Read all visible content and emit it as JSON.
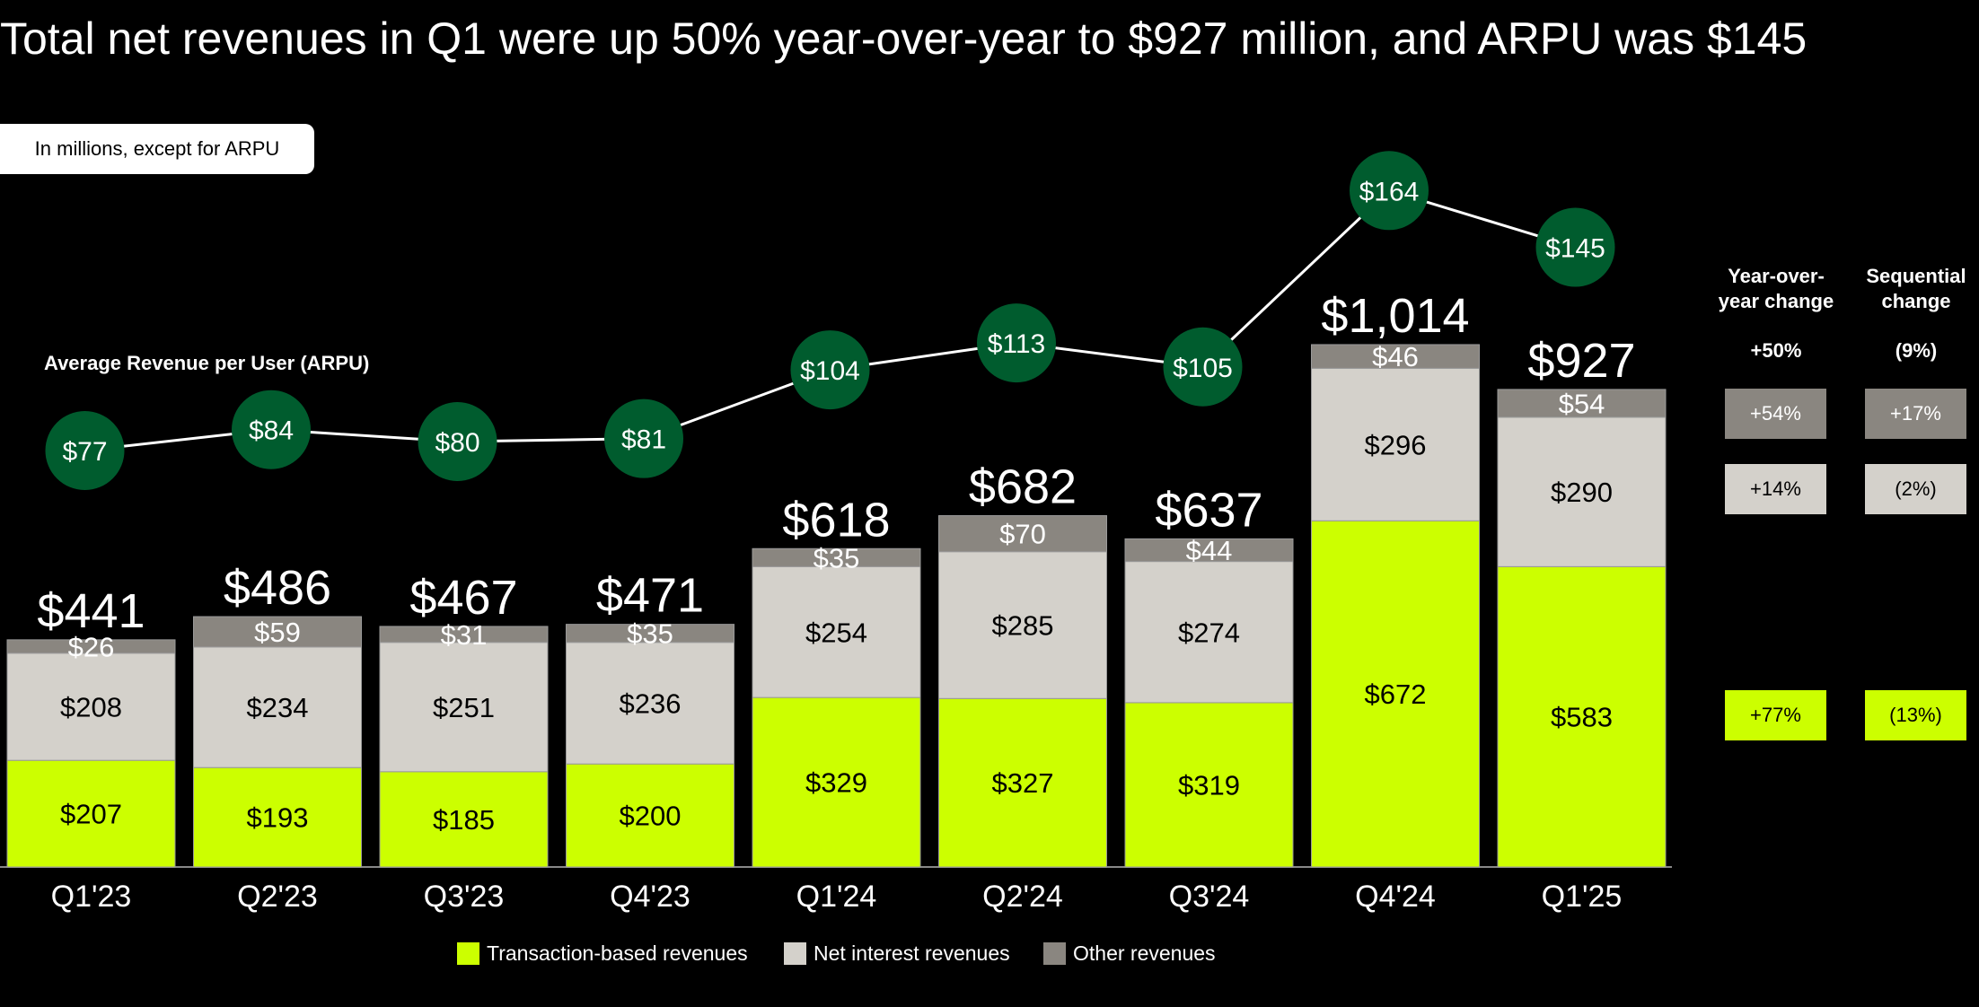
{
  "title": "Total net revenues in Q1 were up 50% year-over-year to $927 million, and ARPU was $145",
  "subtitle": "In millions, except for ARPU",
  "arpu_label": "Average Revenue per User (ARPU)",
  "colors": {
    "transaction": "#ccff00",
    "net_interest": "#d4d1cb",
    "other": "#8a8680",
    "arpu_circle": "#005c2e"
  },
  "chart_data": {
    "type": "bar",
    "stacked": true,
    "categories": [
      "Q1'23",
      "Q2'23",
      "Q3'23",
      "Q4'23",
      "Q1'24",
      "Q2'24",
      "Q3'24",
      "Q4'24",
      "Q1'25"
    ],
    "series": [
      {
        "name": "Transaction-based revenues",
        "values": [
          207,
          193,
          185,
          200,
          329,
          327,
          319,
          672,
          583
        ],
        "labels": [
          "$207",
          "$193",
          "$185",
          "$200",
          "$329",
          "$327",
          "$319",
          "$672",
          "$583"
        ]
      },
      {
        "name": "Net interest revenues",
        "values": [
          208,
          234,
          251,
          236,
          254,
          285,
          274,
          296,
          290
        ],
        "labels": [
          "$208",
          "$234",
          "$251",
          "$236",
          "$254",
          "$285",
          "$274",
          "$296",
          "$290"
        ]
      },
      {
        "name": "Other revenues",
        "values": [
          26,
          59,
          31,
          35,
          35,
          70,
          44,
          46,
          54
        ],
        "labels": [
          "$26",
          "$59",
          "$31",
          "$35",
          "$35",
          "$70",
          "$44",
          "$46",
          "$54"
        ]
      }
    ],
    "totals": [
      441,
      486,
      467,
      471,
      618,
      682,
      637,
      1014,
      927
    ],
    "total_labels": [
      "$441",
      "$486",
      "$467",
      "$471",
      "$618",
      "$682",
      "$637",
      "$1,014",
      "$927"
    ],
    "arpu": {
      "name": "Average Revenue per User (ARPU)",
      "values": [
        77,
        84,
        80,
        81,
        104,
        113,
        105,
        164,
        145
      ],
      "labels": [
        "$77",
        "$84",
        "$80",
        "$81",
        "$104",
        "$113",
        "$105",
        "$164",
        "$145"
      ]
    },
    "legend": [
      "Transaction-based revenues",
      "Net interest revenues",
      "Other revenues"
    ],
    "legend_position": "bottom",
    "grid": false
  },
  "changes": {
    "headers": {
      "yoy": "Year-over-year change",
      "seq": "Sequential change"
    },
    "total": {
      "yoy": "+50%",
      "seq": "(9%)"
    },
    "other": {
      "yoy": "+54%",
      "seq": "+17%"
    },
    "net_interest": {
      "yoy": "+14%",
      "seq": "(2%)"
    },
    "transaction": {
      "yoy": "+77%",
      "seq": "(13%)"
    }
  }
}
